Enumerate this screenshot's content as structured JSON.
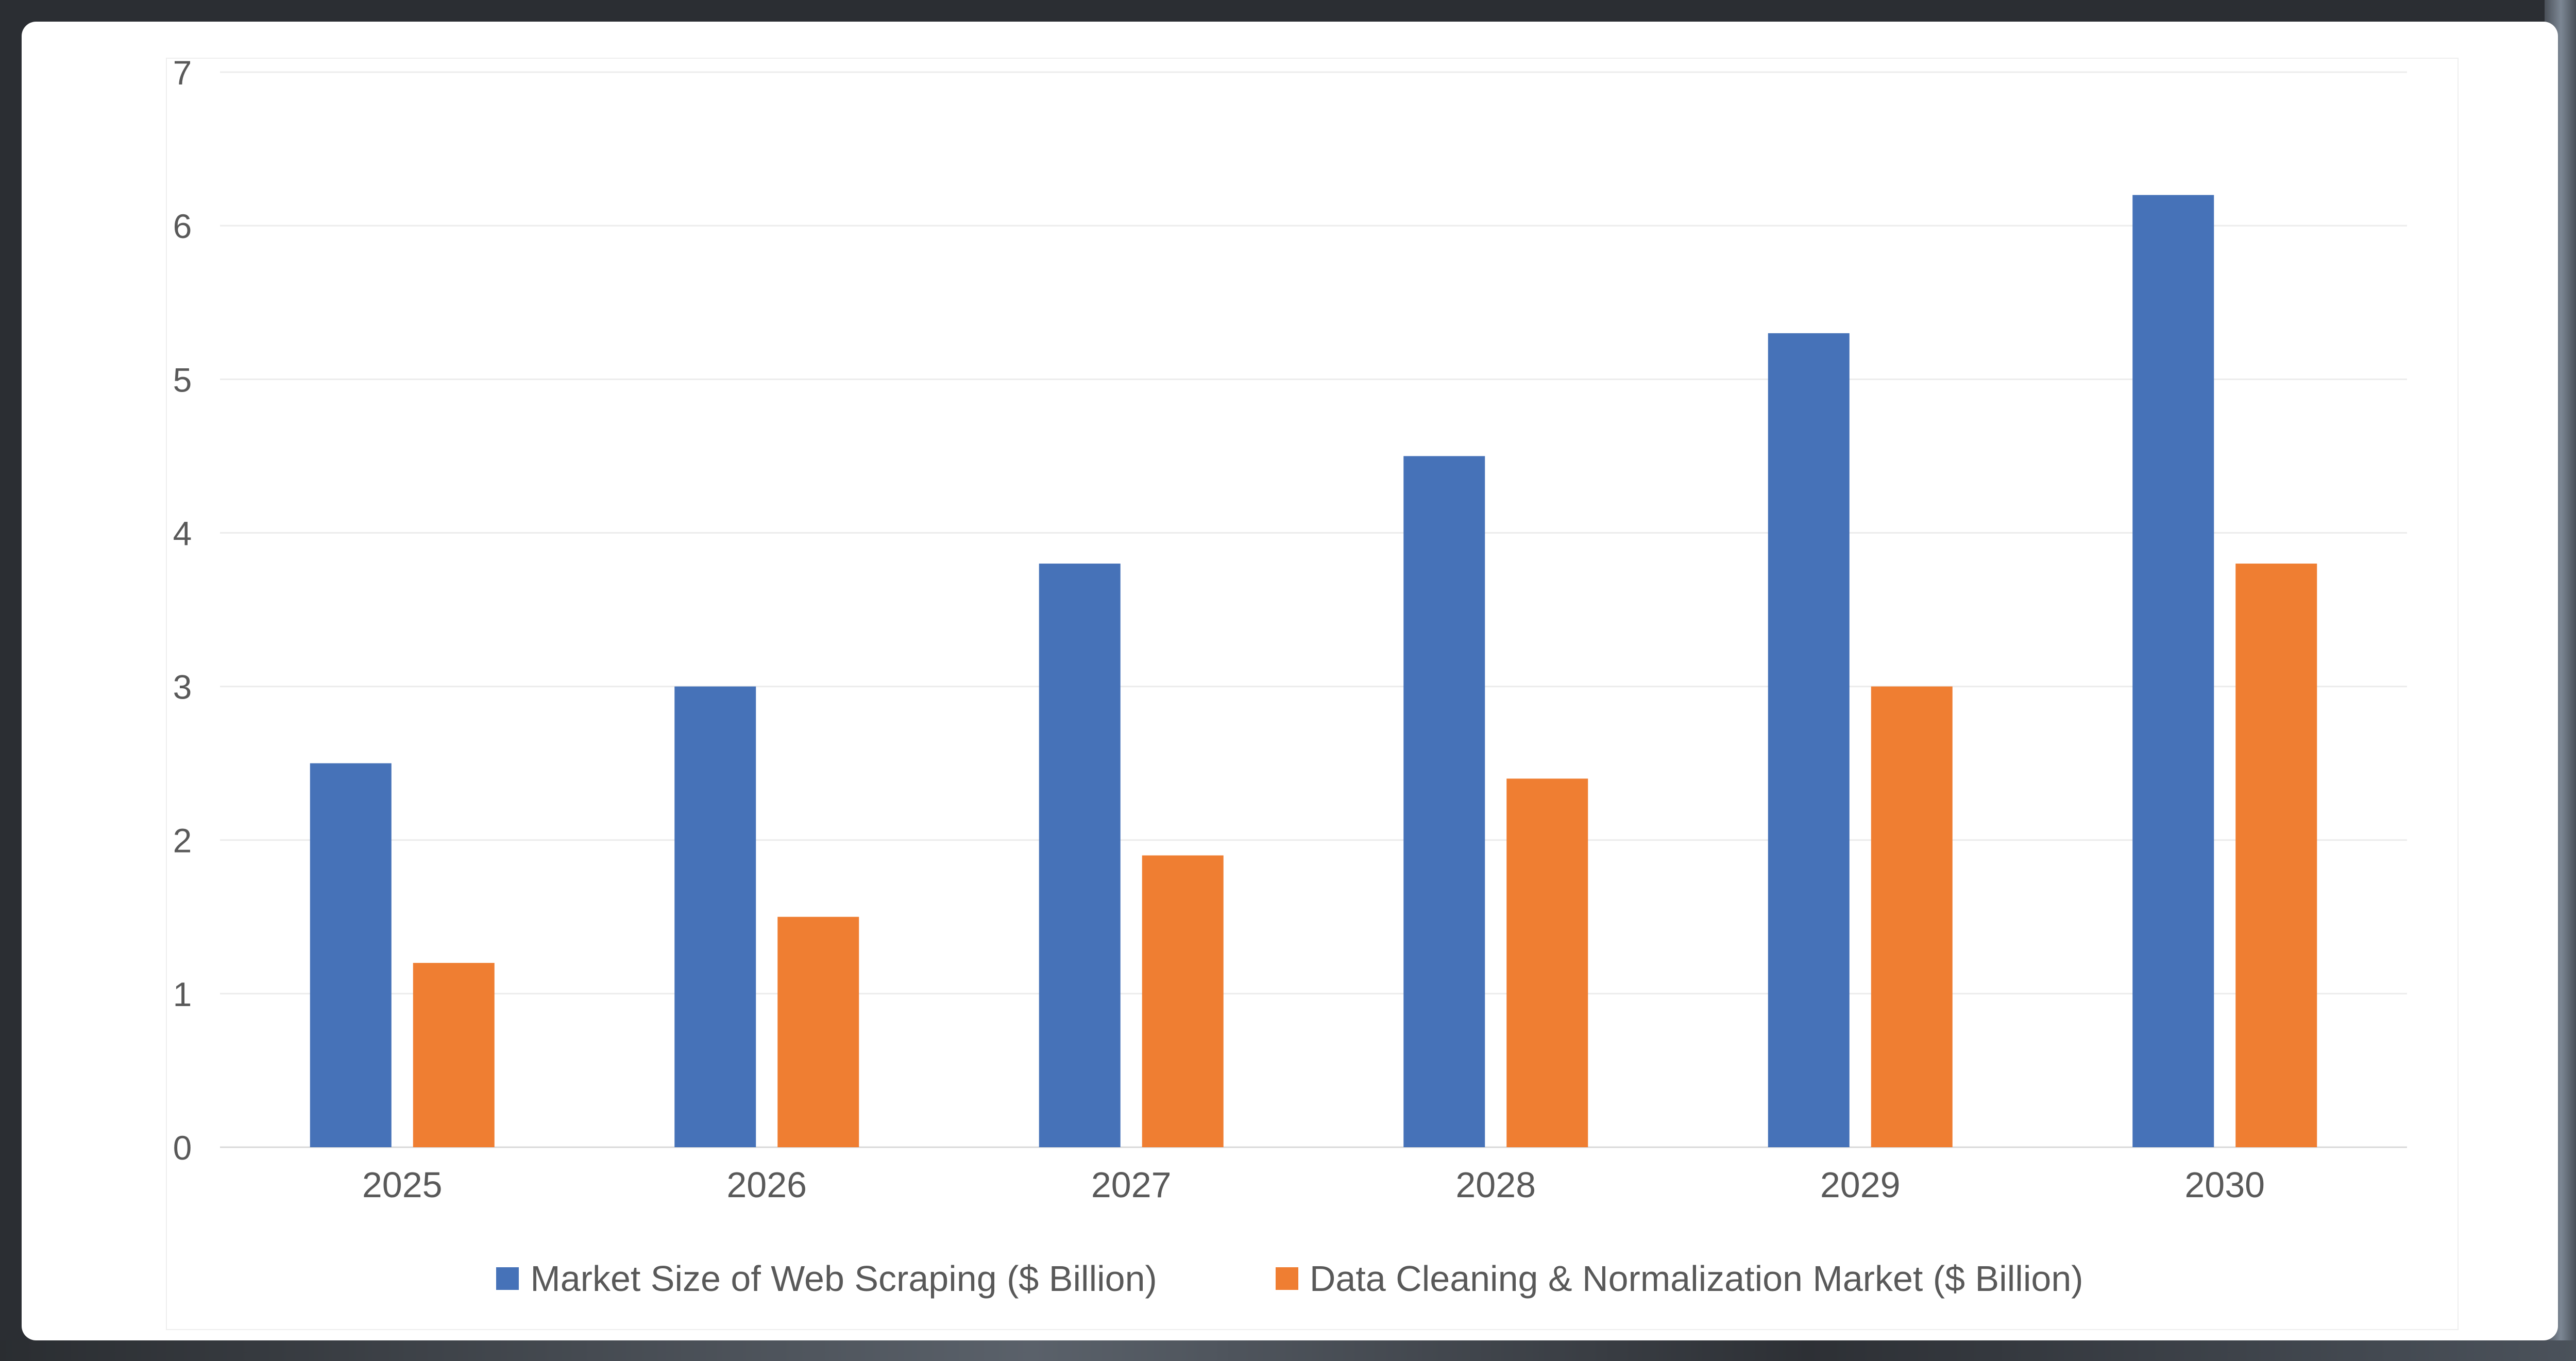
{
  "chart_data": {
    "type": "bar",
    "categories": [
      "2025",
      "2026",
      "2027",
      "2028",
      "2029",
      "2030"
    ],
    "series": [
      {
        "name": "Market Size of Web Scraping ($ Billion)",
        "values": [
          2.5,
          3.0,
          3.8,
          4.5,
          5.3,
          6.2
        ],
        "color": "#4672B8"
      },
      {
        "name": "Data Cleaning & Normalization Market ($ Billion)",
        "values": [
          1.2,
          1.5,
          1.9,
          2.4,
          3.0,
          3.8
        ],
        "color": "#EF7E32"
      }
    ],
    "yticks": [
      "0",
      "1",
      "2",
      "3",
      "4",
      "5",
      "6",
      "7"
    ],
    "ylim": [
      0,
      7
    ],
    "grid": true,
    "legend_position": "bottom"
  }
}
